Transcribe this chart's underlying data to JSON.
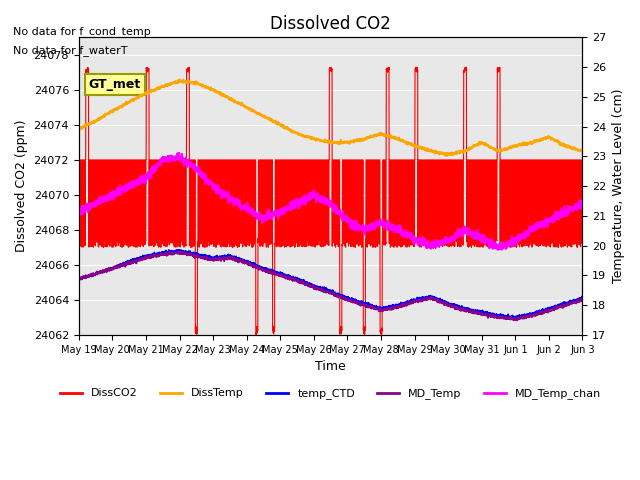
{
  "title": "Dissolved CO2",
  "ylabel_left": "Dissolved CO2 (ppm)",
  "ylabel_right": "Temperature, Water Level (cm)",
  "xlabel": "Time",
  "annotation1": "No data for f_cond_temp",
  "annotation2": "No data for f_waterT",
  "gt_met_label": "GT_met",
  "ylim_left": [
    24062,
    24079
  ],
  "ylim_right": [
    17.0,
    27.0
  ],
  "yticks_left": [
    24062,
    24064,
    24066,
    24068,
    24070,
    24072,
    24074,
    24076,
    24078
  ],
  "yticks_right": [
    17.0,
    18.0,
    19.0,
    20.0,
    21.0,
    22.0,
    23.0,
    24.0,
    25.0,
    26.0,
    27.0
  ],
  "xtick_labels": [
    "May 19",
    "May 20",
    "May 21",
    "May 22",
    "May 23",
    "May 24",
    "May 25",
    "May 26",
    "May 27",
    "May 28",
    "May 29",
    "May 30",
    "May 31",
    "Jun 1",
    "Jun 2",
    "Jun 3"
  ],
  "n_days": 15,
  "colors": {
    "DissCO2": "#FF0000",
    "DissTemp": "#FFA500",
    "temp_CTD": "#0000FF",
    "MD_Temp": "#8B008B",
    "MD_Temp_chan": "#FF00FF",
    "background": "#E8E8E8",
    "gt_met_bg": "#FFFF99",
    "gt_met_border": "#999900"
  },
  "legend_entries": [
    "DissCO2",
    "DissTemp",
    "temp_CTD",
    "MD_Temp",
    "MD_Temp_chan"
  ]
}
